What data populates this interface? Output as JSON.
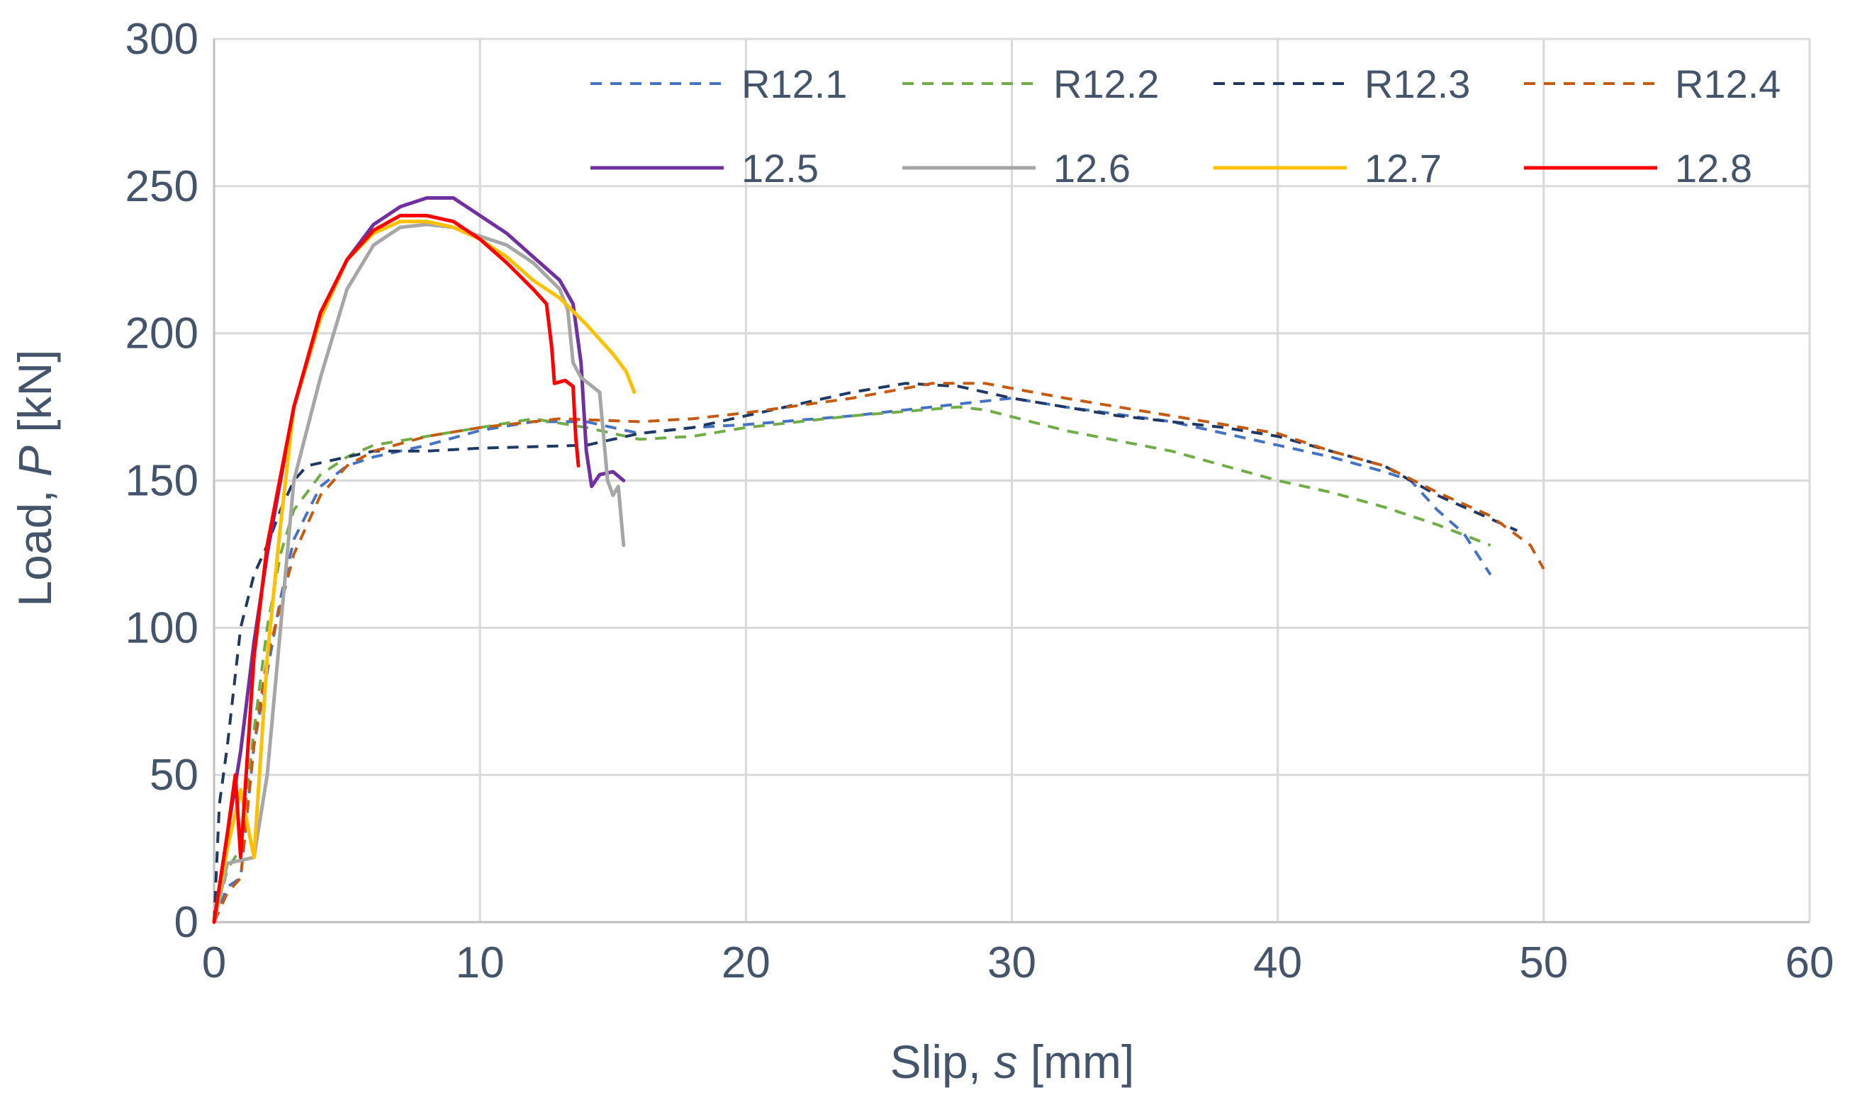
{
  "chart_data": {
    "type": "line",
    "title": "",
    "xlabel_prefix": "Slip, ",
    "xlabel_symbol": "s",
    "xlabel_suffix": " [mm]",
    "ylabel_prefix": "Load, ",
    "ylabel_symbol": "P",
    "ylabel_suffix": " [kN]",
    "xlim": [
      0,
      60
    ],
    "ylim": [
      0,
      300
    ],
    "x_ticks": [
      0,
      10,
      20,
      30,
      40,
      50,
      60
    ],
    "y_ticks": [
      0,
      50,
      100,
      150,
      200,
      250,
      300
    ],
    "grid": true,
    "legend_position": "top-right",
    "series": [
      {
        "name": "R12.1",
        "color": "#4472c4",
        "dashed": true,
        "points": [
          [
            0,
            0
          ],
          [
            0.5,
            12
          ],
          [
            1,
            15
          ],
          [
            1.5,
            60
          ],
          [
            2.5,
            110
          ],
          [
            3,
            130
          ],
          [
            4,
            148
          ],
          [
            5,
            155
          ],
          [
            6,
            158
          ],
          [
            8,
            162
          ],
          [
            10,
            167
          ],
          [
            12,
            170
          ],
          [
            14,
            170
          ],
          [
            16,
            166
          ],
          [
            18,
            168
          ],
          [
            20,
            169
          ],
          [
            24,
            172
          ],
          [
            28,
            176
          ],
          [
            30,
            178
          ],
          [
            32,
            175
          ],
          [
            36,
            170
          ],
          [
            40,
            162
          ],
          [
            42,
            158
          ],
          [
            44,
            153
          ],
          [
            45,
            150
          ],
          [
            46,
            140
          ],
          [
            47,
            132
          ],
          [
            48,
            118
          ]
        ]
      },
      {
        "name": "R12.2",
        "color": "#70ad47",
        "dashed": true,
        "points": [
          [
            0,
            0
          ],
          [
            0.5,
            18
          ],
          [
            1,
            25
          ],
          [
            1.5,
            65
          ],
          [
            2,
            100
          ],
          [
            2.5,
            125
          ],
          [
            3,
            140
          ],
          [
            4,
            152
          ],
          [
            5,
            158
          ],
          [
            6,
            162
          ],
          [
            8,
            165
          ],
          [
            10,
            168
          ],
          [
            12,
            171
          ],
          [
            14,
            168
          ],
          [
            16,
            164
          ],
          [
            18,
            165
          ],
          [
            20,
            168
          ],
          [
            24,
            172
          ],
          [
            28,
            175
          ],
          [
            29,
            174
          ],
          [
            32,
            167
          ],
          [
            36,
            160
          ],
          [
            40,
            150
          ],
          [
            42,
            146
          ],
          [
            44,
            141
          ],
          [
            46,
            135
          ],
          [
            48,
            128
          ]
        ]
      },
      {
        "name": "R12.3",
        "color": "#1f3864",
        "dashed": true,
        "points": [
          [
            0,
            0
          ],
          [
            0.2,
            40
          ],
          [
            0.5,
            60
          ],
          [
            1,
            100
          ],
          [
            1.5,
            118
          ],
          [
            2,
            128
          ],
          [
            2.5,
            140
          ],
          [
            3,
            150
          ],
          [
            3.5,
            155
          ],
          [
            5,
            158
          ],
          [
            6,
            160
          ],
          [
            8,
            160
          ],
          [
            10,
            161
          ],
          [
            14,
            162
          ],
          [
            16,
            166
          ],
          [
            18,
            168
          ],
          [
            20,
            172
          ],
          [
            22,
            176
          ],
          [
            24,
            180
          ],
          [
            26,
            183
          ],
          [
            28,
            182
          ],
          [
            30,
            178
          ],
          [
            34,
            172
          ],
          [
            38,
            168
          ],
          [
            40,
            165
          ],
          [
            42,
            160
          ],
          [
            44,
            155
          ],
          [
            46,
            145
          ],
          [
            48,
            137
          ],
          [
            49,
            133
          ]
        ]
      },
      {
        "name": "R12.4",
        "color": "#c55a11",
        "dashed": true,
        "points": [
          [
            0,
            0
          ],
          [
            0.5,
            10
          ],
          [
            1,
            15
          ],
          [
            1.5,
            60
          ],
          [
            2,
            90
          ],
          [
            3,
            125
          ],
          [
            4,
            145
          ],
          [
            5,
            155
          ],
          [
            6,
            160
          ],
          [
            8,
            165
          ],
          [
            10,
            168
          ],
          [
            13,
            171
          ],
          [
            16,
            170
          ],
          [
            18,
            171
          ],
          [
            20,
            173
          ],
          [
            24,
            178
          ],
          [
            27,
            183
          ],
          [
            29,
            183
          ],
          [
            32,
            178
          ],
          [
            36,
            172
          ],
          [
            40,
            166
          ],
          [
            42,
            160
          ],
          [
            44,
            155
          ],
          [
            46,
            146
          ],
          [
            48,
            138
          ],
          [
            49.5,
            128
          ],
          [
            50,
            120
          ]
        ]
      },
      {
        "name": "12.5",
        "color": "#7030a0",
        "dashed": false,
        "points": [
          [
            0,
            0
          ],
          [
            0.5,
            30
          ],
          [
            1,
            58
          ],
          [
            1.5,
            95
          ],
          [
            2,
            125
          ],
          [
            3,
            175
          ],
          [
            4,
            205
          ],
          [
            5,
            225
          ],
          [
            6,
            237
          ],
          [
            7,
            243
          ],
          [
            8,
            246
          ],
          [
            9,
            246
          ],
          [
            9.5,
            243
          ],
          [
            10,
            240
          ],
          [
            11,
            234
          ],
          [
            12,
            226
          ],
          [
            13,
            218
          ],
          [
            13.5,
            210
          ],
          [
            13.8,
            190
          ],
          [
            14.0,
            160
          ],
          [
            14.2,
            148
          ],
          [
            14.5,
            152
          ],
          [
            15,
            153
          ],
          [
            15.4,
            150
          ]
        ]
      },
      {
        "name": "12.6",
        "color": "#a6a6a6",
        "dashed": false,
        "points": [
          [
            0,
            0
          ],
          [
            0.5,
            20
          ],
          [
            1.5,
            22
          ],
          [
            2,
            50
          ],
          [
            2.5,
            100
          ],
          [
            3,
            150
          ],
          [
            4,
            185
          ],
          [
            5,
            215
          ],
          [
            6,
            230
          ],
          [
            7,
            236
          ],
          [
            8,
            237
          ],
          [
            9,
            236
          ],
          [
            10,
            233
          ],
          [
            11,
            230
          ],
          [
            12,
            224
          ],
          [
            13,
            215
          ],
          [
            13.3,
            208
          ],
          [
            13.5,
            190
          ],
          [
            13.8,
            185
          ],
          [
            14.5,
            180
          ],
          [
            14.8,
            150
          ],
          [
            15,
            145
          ],
          [
            15.2,
            148
          ],
          [
            15.4,
            128
          ]
        ]
      },
      {
        "name": "12.7",
        "color": "#ffc000",
        "dashed": false,
        "points": [
          [
            0,
            0
          ],
          [
            0.5,
            25
          ],
          [
            1,
            45
          ],
          [
            1.5,
            22
          ],
          [
            2,
            90
          ],
          [
            2.5,
            135
          ],
          [
            3,
            175
          ],
          [
            4,
            205
          ],
          [
            5,
            225
          ],
          [
            6,
            234
          ],
          [
            7,
            238
          ],
          [
            8,
            238
          ],
          [
            9,
            236
          ],
          [
            10,
            232
          ],
          [
            11,
            226
          ],
          [
            12,
            218
          ],
          [
            13,
            212
          ],
          [
            14,
            203
          ],
          [
            15,
            193
          ],
          [
            15.5,
            187
          ],
          [
            15.8,
            180
          ]
        ]
      },
      {
        "name": "12.8",
        "color": "#ff0000",
        "dashed": false,
        "points": [
          [
            0,
            0
          ],
          [
            0.5,
            30
          ],
          [
            0.8,
            50
          ],
          [
            1,
            22
          ],
          [
            1.5,
            90
          ],
          [
            2,
            128
          ],
          [
            3,
            175
          ],
          [
            4,
            207
          ],
          [
            5,
            225
          ],
          [
            6,
            235
          ],
          [
            7,
            240
          ],
          [
            8,
            240
          ],
          [
            9,
            238
          ],
          [
            10,
            232
          ],
          [
            11,
            224
          ],
          [
            12,
            215
          ],
          [
            12.5,
            210
          ],
          [
            12.7,
            195
          ],
          [
            12.8,
            183
          ],
          [
            13.2,
            184
          ],
          [
            13.5,
            182
          ],
          [
            13.6,
            165
          ],
          [
            13.7,
            155
          ]
        ]
      }
    ]
  }
}
